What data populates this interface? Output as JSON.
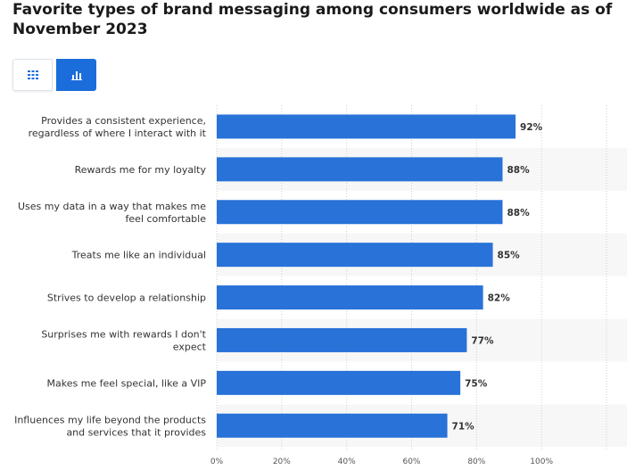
{
  "title": "Favorite types of brand messaging among consumers worldwide as of November 2023",
  "view_toggle": {
    "table_icon": "grid-icon",
    "chart_icon": "bar-chart-icon",
    "active": "chart"
  },
  "colors": {
    "bar": "#2872d8",
    "toggle_active": "#1a6ddb",
    "band": "#f7f7f7",
    "gridline": "#cfcfcf"
  },
  "chart_data": {
    "type": "bar",
    "orientation": "horizontal",
    "title": "Favorite types of brand messaging among consumers worldwide as of November 2023",
    "categories": [
      [
        "Provides a consistent experience,",
        "regardless of where I interact with it"
      ],
      [
        "Rewards me for my loyalty"
      ],
      [
        "Uses my data in a way that makes me",
        "feel comfortable"
      ],
      [
        "Treats me like an individual"
      ],
      [
        "Strives to develop a relationship"
      ],
      [
        "Surprises me with rewards I don't",
        "expect"
      ],
      [
        "Makes me feel special, like a VIP"
      ],
      [
        "Influences my life beyond the products",
        "and services that it provides"
      ]
    ],
    "values": [
      92,
      88,
      88,
      85,
      82,
      77,
      75,
      71
    ],
    "value_labels": [
      "92%",
      "88%",
      "88%",
      "85%",
      "82%",
      "77%",
      "75%",
      "71%"
    ],
    "xlim": [
      0,
      120
    ],
    "xticks": [
      0,
      20,
      40,
      60,
      80,
      100
    ],
    "xtick_labels": [
      "0%",
      "20%",
      "40%",
      "60%",
      "80%",
      "100%"
    ],
    "grid": true,
    "legend": "none"
  }
}
